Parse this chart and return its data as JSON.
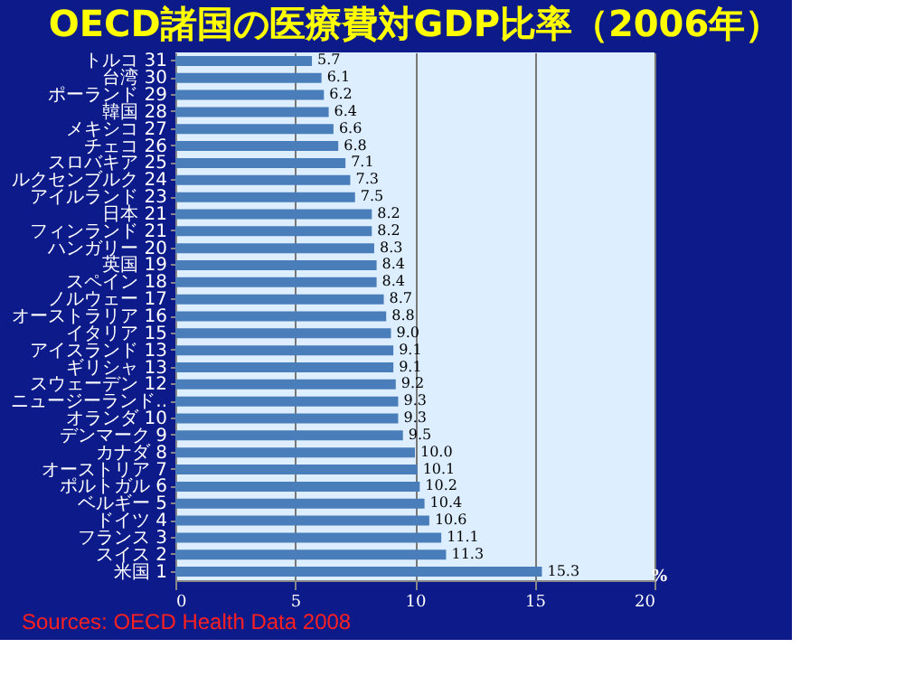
{
  "chart_data": {
    "type": "bar",
    "orientation": "horizontal",
    "title": "OECD諸国の医療費対GDP比率（2006年）",
    "categories": [
      "トルコ 31",
      "台湾 30",
      "ポーランド 29",
      "韓国 28",
      "メキシコ 27",
      "チェコ 26",
      "スロバキア 25",
      "ルクセンブルク 24",
      "アイルランド 23",
      "日本 21",
      "フィンランド 21",
      "ハンガリー 20",
      "英国 19",
      "スペイン 18",
      "ノルウェー 17",
      "オーストラリア 16",
      "イタリア 15",
      "アイスランド 13",
      "ギリシャ 13",
      "スウェーデン 12",
      "ニュージーランド..",
      "オランダ 10",
      "デンマーク 9",
      "カナダ 8",
      "オーストリア 7",
      "ポルトガル 6",
      "ベルギー 5",
      "ドイツ 4",
      "フランス 3",
      "スイス 2",
      "米国 1"
    ],
    "values": [
      5.7,
      6.1,
      6.2,
      6.4,
      6.6,
      6.8,
      7.1,
      7.3,
      7.5,
      8.2,
      8.2,
      8.3,
      8.4,
      8.4,
      8.7,
      8.8,
      9.0,
      9.1,
      9.1,
      9.2,
      9.3,
      9.3,
      9.5,
      10.0,
      10.1,
      10.2,
      10.4,
      10.6,
      11.1,
      11.3,
      15.3
    ],
    "color": "#4a7ebb",
    "value_labels": [
      "5.7",
      "6.1",
      "6.2",
      "6.4",
      "6.6",
      "6.8",
      "7.1",
      "7.3",
      "7.5",
      "8.2",
      "8.2",
      "8.3",
      "8.4",
      "8.4",
      "8.7",
      "8.8",
      "9.0",
      "9.1",
      "9.1",
      "9.2",
      "9.3",
      "9.3",
      "9.5",
      "10.0",
      "10.1",
      "10.2",
      "10.4",
      "10.6",
      "11.1",
      "11.3",
      "15.3"
    ],
    "xlim": [
      0,
      20
    ],
    "xticks": [
      0,
      5,
      10,
      15,
      20
    ],
    "xlabel": "%",
    "grid": "x",
    "annotations": [
      "Sources: OECD  Health  Data  2008"
    ]
  }
}
